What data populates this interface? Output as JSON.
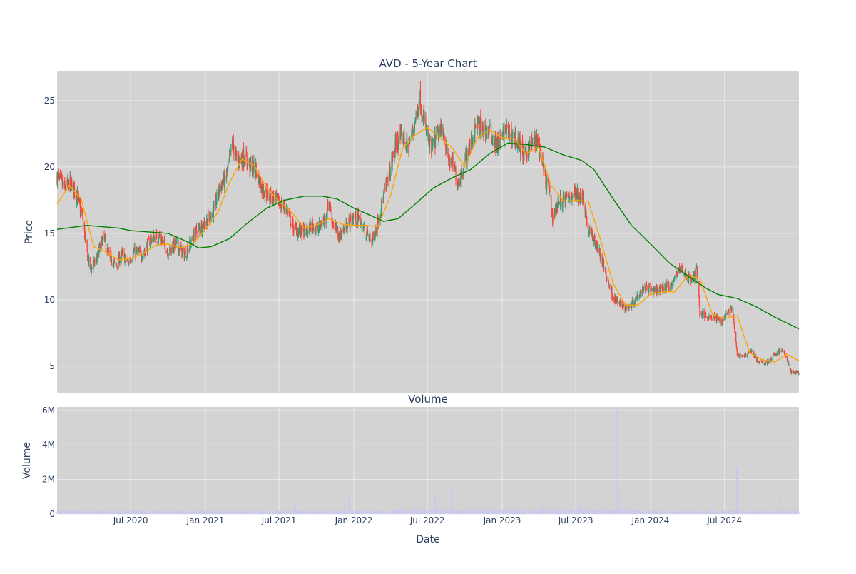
{
  "colors": {
    "plot_bg": "#d3d3d3",
    "grid": "#ebebeb",
    "text": "#2a3f5f",
    "increasing": "#3d9970",
    "decreasing": "#ff4136",
    "ma_short": "#ffa500",
    "ma_long": "#008000",
    "volume": "#c8c8f0"
  },
  "chart_data": [
    {
      "type": "candlestick",
      "title": "AVD - 5-Year Chart",
      "ylabel": "Price",
      "xlim": [
        "2020-01-02",
        "2024-12-31"
      ],
      "ylim": [
        3,
        27.2
      ],
      "yticks": [
        5,
        10,
        15,
        20,
        25
      ],
      "ytick_labels": [
        "5",
        "10",
        "15",
        "20",
        "25"
      ],
      "grid": true,
      "close_path": [
        [
          "2020-01-02",
          19.3
        ],
        [
          "2020-01-20",
          18.4
        ],
        [
          "2020-02-05",
          18.9
        ],
        [
          "2020-02-20",
          17.8
        ],
        [
          "2020-03-05",
          16.2
        ],
        [
          "2020-03-15",
          13.5
        ],
        [
          "2020-03-25",
          12.2
        ],
        [
          "2020-04-10",
          13.2
        ],
        [
          "2020-04-25",
          14.8
        ],
        [
          "2020-05-10",
          13.1
        ],
        [
          "2020-05-25",
          12.6
        ],
        [
          "2020-06-10",
          13.4
        ],
        [
          "2020-06-25",
          12.8
        ],
        [
          "2020-07-10",
          13.6
        ],
        [
          "2020-08-01",
          13.4
        ],
        [
          "2020-08-20",
          14.6
        ],
        [
          "2020-09-10",
          14.8
        ],
        [
          "2020-10-01",
          13.6
        ],
        [
          "2020-10-20",
          14.2
        ],
        [
          "2020-11-10",
          13.4
        ],
        [
          "2020-11-25",
          14.2
        ],
        [
          "2020-12-10",
          15.2
        ],
        [
          "2021-01-01",
          15.8
        ],
        [
          "2021-01-20",
          16.6
        ],
        [
          "2021-02-05",
          18.4
        ],
        [
          "2021-02-20",
          19.2
        ],
        [
          "2021-03-01",
          20.4
        ],
        [
          "2021-03-08",
          21.8
        ],
        [
          "2021-03-20",
          20.4
        ],
        [
          "2021-04-05",
          20.8
        ],
        [
          "2021-04-20",
          20.1
        ],
        [
          "2021-05-05",
          19.8
        ],
        [
          "2021-05-20",
          18.4
        ],
        [
          "2021-06-05",
          17.9
        ],
        [
          "2021-06-20",
          17.6
        ],
        [
          "2021-07-05",
          17.2
        ],
        [
          "2021-07-20",
          16.8
        ],
        [
          "2021-08-05",
          15.4
        ],
        [
          "2021-08-20",
          15.2
        ],
        [
          "2021-09-05",
          15.1
        ],
        [
          "2021-09-20",
          15.6
        ],
        [
          "2021-10-05",
          15.3
        ],
        [
          "2021-10-20",
          16.0
        ],
        [
          "2021-11-01",
          17.4
        ],
        [
          "2021-11-10",
          15.8
        ],
        [
          "2021-11-25",
          14.8
        ],
        [
          "2021-12-10",
          15.4
        ],
        [
          "2022-01-01",
          16.2
        ],
        [
          "2022-01-15",
          16.0
        ],
        [
          "2022-02-01",
          15.0
        ],
        [
          "2022-02-15",
          14.4
        ],
        [
          "2022-03-01",
          15.8
        ],
        [
          "2022-03-15",
          17.8
        ],
        [
          "2022-04-01",
          19.8
        ],
        [
          "2022-04-15",
          21.8
        ],
        [
          "2022-05-01",
          22.4
        ],
        [
          "2022-05-15",
          21.4
        ],
        [
          "2022-06-01",
          23.6
        ],
        [
          "2022-06-12",
          25.2
        ],
        [
          "2022-06-25",
          23.2
        ],
        [
          "2022-07-10",
          21.2
        ],
        [
          "2022-07-25",
          22.4
        ],
        [
          "2022-08-10",
          22.8
        ],
        [
          "2022-08-20",
          20.6
        ],
        [
          "2022-09-01",
          20.2
        ],
        [
          "2022-09-15",
          18.8
        ],
        [
          "2022-10-01",
          20.4
        ],
        [
          "2022-10-15",
          21.8
        ],
        [
          "2022-11-01",
          23.2
        ],
        [
          "2022-11-15",
          22.8
        ],
        [
          "2022-12-01",
          22.6
        ],
        [
          "2022-12-20",
          21.6
        ],
        [
          "2023-01-10",
          22.8
        ],
        [
          "2023-01-25",
          22.4
        ],
        [
          "2023-02-10",
          21.8
        ],
        [
          "2023-02-25",
          20.8
        ],
        [
          "2023-03-10",
          21.6
        ],
        [
          "2023-03-25",
          22.0
        ],
        [
          "2023-04-05",
          21.2
        ],
        [
          "2023-04-15",
          19.2
        ],
        [
          "2023-04-25",
          18.6
        ],
        [
          "2023-05-05",
          16.2
        ],
        [
          "2023-05-20",
          17.4
        ],
        [
          "2023-06-10",
          17.6
        ],
        [
          "2023-06-25",
          18.0
        ],
        [
          "2023-07-10",
          17.9
        ],
        [
          "2023-07-20",
          17.6
        ],
        [
          "2023-08-01",
          15.2
        ],
        [
          "2023-08-15",
          14.6
        ],
        [
          "2023-09-01",
          13.2
        ],
        [
          "2023-09-15",
          11.8
        ],
        [
          "2023-10-01",
          10.2
        ],
        [
          "2023-10-20",
          9.6
        ],
        [
          "2023-11-05",
          9.4
        ],
        [
          "2023-11-20",
          9.8
        ],
        [
          "2023-12-05",
          10.6
        ],
        [
          "2023-12-20",
          11.0
        ],
        [
          "2024-01-10",
          10.6
        ],
        [
          "2024-01-25",
          10.8
        ],
        [
          "2024-02-10",
          11.0
        ],
        [
          "2024-02-25",
          11.2
        ],
        [
          "2024-03-10",
          12.4
        ],
        [
          "2024-03-25",
          12.0
        ],
        [
          "2024-04-10",
          11.4
        ],
        [
          "2024-04-25",
          12.2
        ],
        [
          "2024-05-01",
          9.0
        ],
        [
          "2024-05-20",
          8.8
        ],
        [
          "2024-06-10",
          8.6
        ],
        [
          "2024-06-25",
          8.4
        ],
        [
          "2024-07-05",
          9.0
        ],
        [
          "2024-07-20",
          9.4
        ],
        [
          "2024-08-01",
          5.8
        ],
        [
          "2024-08-20",
          5.8
        ],
        [
          "2024-09-05",
          6.2
        ],
        [
          "2024-09-20",
          5.4
        ],
        [
          "2024-10-05",
          5.2
        ],
        [
          "2024-10-20",
          5.4
        ],
        [
          "2024-11-05",
          6.0
        ],
        [
          "2024-11-20",
          6.2
        ],
        [
          "2024-12-01",
          5.6
        ],
        [
          "2024-12-10",
          4.6
        ],
        [
          "2024-12-31",
          4.5
        ]
      ],
      "series": [
        {
          "name": "",
          "kind": "ma_short",
          "points": [
            [
              "2020-01-02",
              17.2
            ],
            [
              "2020-02-01",
              18.6
            ],
            [
              "2020-03-01",
              17.6
            ],
            [
              "2020-04-01",
              14.0
            ],
            [
              "2020-05-01",
              13.6
            ],
            [
              "2020-06-01",
              13.0
            ],
            [
              "2020-07-01",
              13.1
            ],
            [
              "2020-08-01",
              13.5
            ],
            [
              "2020-09-01",
              14.1
            ],
            [
              "2020-10-01",
              14.2
            ],
            [
              "2020-11-01",
              13.9
            ],
            [
              "2020-12-01",
              14.2
            ],
            [
              "2021-01-01",
              15.3
            ],
            [
              "2021-02-01",
              16.6
            ],
            [
              "2021-03-01",
              18.8
            ],
            [
              "2021-04-01",
              20.6
            ],
            [
              "2021-05-01",
              20.1
            ],
            [
              "2021-06-01",
              18.4
            ],
            [
              "2021-07-01",
              17.4
            ],
            [
              "2021-08-01",
              16.6
            ],
            [
              "2021-09-01",
              15.4
            ],
            [
              "2021-10-01",
              15.6
            ],
            [
              "2021-11-01",
              16.1
            ],
            [
              "2021-12-01",
              15.7
            ],
            [
              "2022-01-01",
              15.6
            ],
            [
              "2022-02-01",
              15.6
            ],
            [
              "2022-03-01",
              15.5
            ],
            [
              "2022-04-01",
              17.8
            ],
            [
              "2022-05-01",
              21.4
            ],
            [
              "2022-06-01",
              22.4
            ],
            [
              "2022-07-01",
              23.0
            ],
            [
              "2022-08-01",
              22.2
            ],
            [
              "2022-09-01",
              21.4
            ],
            [
              "2022-10-01",
              20.0
            ],
            [
              "2022-11-01",
              22.2
            ],
            [
              "2022-12-01",
              22.8
            ],
            [
              "2023-01-01",
              22.2
            ],
            [
              "2023-02-01",
              22.1
            ],
            [
              "2023-03-01",
              21.0
            ],
            [
              "2023-04-01",
              21.5
            ],
            [
              "2023-05-01",
              18.6
            ],
            [
              "2023-06-01",
              17.4
            ],
            [
              "2023-07-01",
              17.5
            ],
            [
              "2023-08-01",
              17.4
            ],
            [
              "2023-09-01",
              14.4
            ],
            [
              "2023-10-01",
              11.2
            ],
            [
              "2023-11-01",
              9.6
            ],
            [
              "2023-12-01",
              9.6
            ],
            [
              "2024-01-01",
              10.4
            ],
            [
              "2024-02-01",
              10.6
            ],
            [
              "2024-03-01",
              10.6
            ],
            [
              "2024-04-01",
              11.8
            ],
            [
              "2024-05-01",
              11.6
            ],
            [
              "2024-06-01",
              8.9
            ],
            [
              "2024-07-01",
              8.6
            ],
            [
              "2024-08-01",
              8.8
            ],
            [
              "2024-09-01",
              6.0
            ],
            [
              "2024-10-01",
              5.5
            ],
            [
              "2024-11-01",
              5.3
            ],
            [
              "2024-12-01",
              5.9
            ],
            [
              "2024-12-31",
              5.4
            ]
          ]
        },
        {
          "name": "",
          "kind": "ma_long",
          "points": [
            [
              "2020-01-02",
              15.3
            ],
            [
              "2020-03-15",
              15.6
            ],
            [
              "2020-06-01",
              15.4
            ],
            [
              "2020-07-01",
              15.2
            ],
            [
              "2020-10-01",
              15.0
            ],
            [
              "2020-11-15",
              14.4
            ],
            [
              "2020-12-15",
              13.9
            ],
            [
              "2021-01-15",
              14.0
            ],
            [
              "2021-03-01",
              14.6
            ],
            [
              "2021-04-15",
              15.8
            ],
            [
              "2021-06-01",
              16.9
            ],
            [
              "2021-07-15",
              17.5
            ],
            [
              "2021-09-01",
              17.8
            ],
            [
              "2021-10-15",
              17.8
            ],
            [
              "2021-11-20",
              17.6
            ],
            [
              "2022-01-01",
              16.9
            ],
            [
              "2022-02-15",
              16.3
            ],
            [
              "2022-03-15",
              15.9
            ],
            [
              "2022-04-20",
              16.1
            ],
            [
              "2022-06-01",
              17.2
            ],
            [
              "2022-07-15",
              18.4
            ],
            [
              "2022-09-01",
              19.2
            ],
            [
              "2022-10-15",
              19.8
            ],
            [
              "2022-12-01",
              21.0
            ],
            [
              "2023-01-15",
              21.8
            ],
            [
              "2023-03-01",
              21.7
            ],
            [
              "2023-04-15",
              21.5
            ],
            [
              "2023-06-01",
              20.9
            ],
            [
              "2023-07-15",
              20.5
            ],
            [
              "2023-08-15",
              19.8
            ],
            [
              "2023-10-01",
              17.6
            ],
            [
              "2023-11-15",
              15.6
            ],
            [
              "2024-01-01",
              14.2
            ],
            [
              "2024-02-15",
              12.8
            ],
            [
              "2024-04-01",
              11.8
            ],
            [
              "2024-05-15",
              10.9
            ],
            [
              "2024-06-15",
              10.4
            ],
            [
              "2024-08-01",
              10.1
            ],
            [
              "2024-09-15",
              9.5
            ],
            [
              "2024-11-01",
              8.7
            ],
            [
              "2024-12-31",
              7.8
            ]
          ]
        }
      ]
    },
    {
      "type": "bar",
      "title": "Volume",
      "xlabel": "Date",
      "ylabel": "Volume",
      "xlim": [
        "2020-01-02",
        "2024-12-31"
      ],
      "ylim": [
        0,
        6200000
      ],
      "yticks": [
        0,
        2000000,
        4000000,
        6000000
      ],
      "ytick_labels": [
        "0",
        "2M",
        "4M",
        "6M"
      ],
      "xticks": [
        "2020-07-01",
        "2021-01-01",
        "2021-07-01",
        "2022-01-01",
        "2022-07-01",
        "2023-01-01",
        "2023-07-01",
        "2024-01-01",
        "2024-07-01"
      ],
      "xtick_labels": [
        "Jul 2020",
        "Jan 2021",
        "Jul 2021",
        "Jan 2022",
        "Jul 2022",
        "Jan 2023",
        "Jul 2023",
        "Jan 2024",
        "Jul 2024"
      ],
      "grid": true,
      "baseline_volume": 150000,
      "spikes": [
        [
          "2021-08-10",
          800000
        ],
        [
          "2021-09-20",
          750000
        ],
        [
          "2021-12-20",
          1000000
        ],
        [
          "2022-05-01",
          500000
        ],
        [
          "2022-06-10",
          850000
        ],
        [
          "2022-06-25",
          700000
        ],
        [
          "2022-07-20",
          950000
        ],
        [
          "2022-08-30",
          1600000
        ],
        [
          "2022-10-01",
          600000
        ],
        [
          "2022-11-20",
          1850000
        ],
        [
          "2023-04-10",
          450000
        ],
        [
          "2023-07-10",
          750000
        ],
        [
          "2023-09-10",
          700000
        ],
        [
          "2023-10-12",
          6100000
        ],
        [
          "2023-10-20",
          1350000
        ],
        [
          "2023-11-05",
          600000
        ],
        [
          "2024-04-01",
          900000
        ],
        [
          "2024-06-01",
          700000
        ],
        [
          "2024-07-31",
          2700000
        ],
        [
          "2024-11-15",
          1400000
        ]
      ]
    }
  ]
}
